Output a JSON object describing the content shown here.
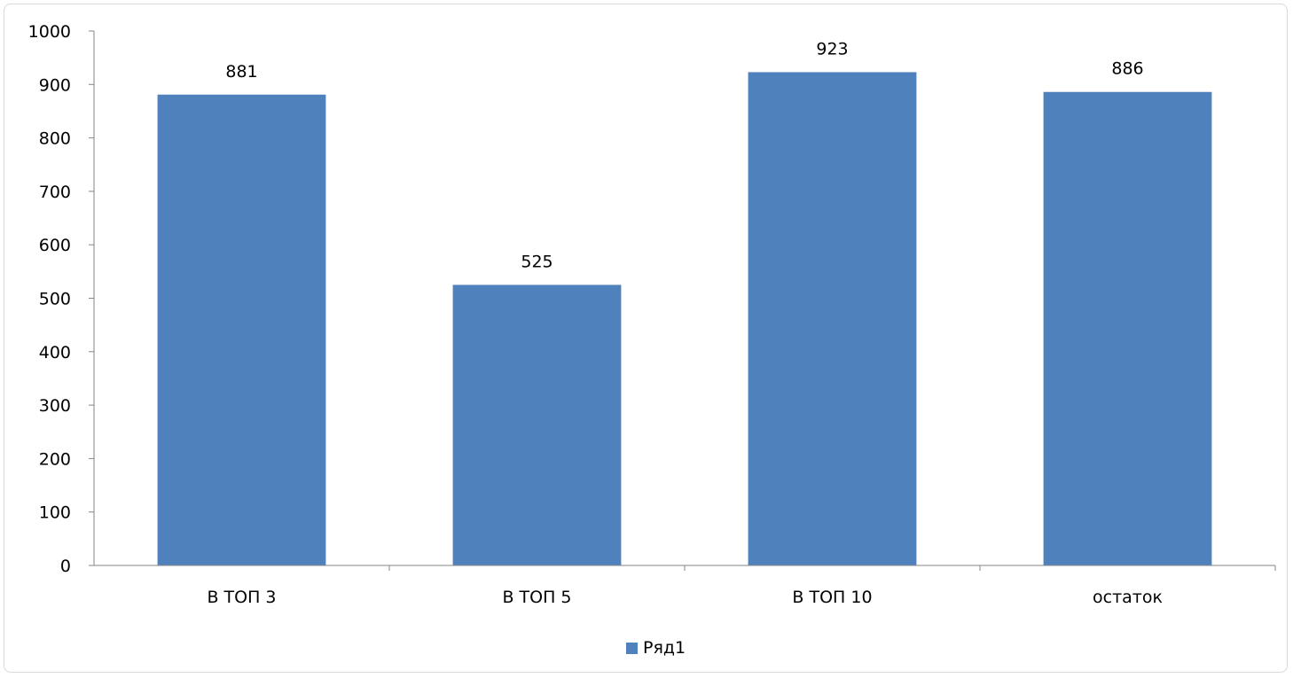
{
  "chart_data": {
    "type": "bar",
    "categories": [
      "В ТОП 3",
      "В ТОП 5",
      "В ТОП 10",
      "остаток"
    ],
    "series": [
      {
        "name": "Ряд1",
        "values": [
          881,
          525,
          923,
          886
        ]
      }
    ],
    "ylim": [
      0,
      1000
    ],
    "yticks": [
      0,
      100,
      200,
      300,
      400,
      500,
      600,
      700,
      800,
      900,
      1000
    ],
    "grid": false,
    "legend_position": "bottom",
    "bar_color": "#4f81bd",
    "axis_color": "#868686"
  },
  "legend": {
    "label": "Ряд1"
  }
}
